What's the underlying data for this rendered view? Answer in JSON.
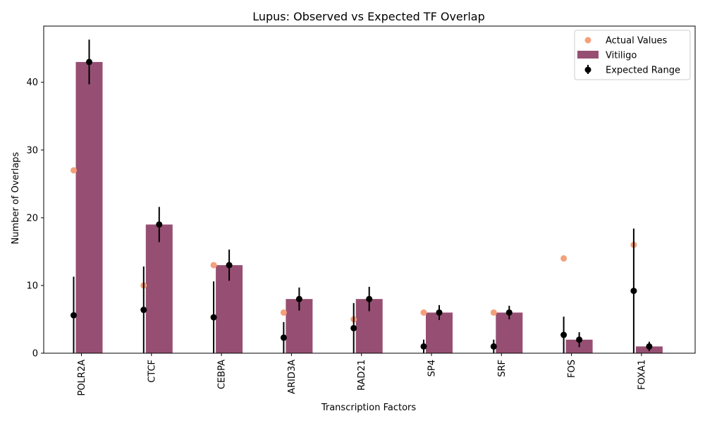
{
  "chart_data": {
    "type": "bar",
    "title": "Lupus: Observed vs Expected TF Overlap",
    "xlabel": "Transcription Factors",
    "ylabel": "Number of Overlaps",
    "ylim": [
      0,
      48.3
    ],
    "yticks": [
      0,
      10,
      20,
      30,
      40
    ],
    "categories": [
      "POLR2A",
      "CTCF",
      "CEBPA",
      "ARID3A",
      "RAD21",
      "SP4",
      "SRF",
      "FOS",
      "FOXA1"
    ],
    "legend_position": "top-right",
    "grid": false,
    "lupus": {
      "actual_values": [
        27,
        10,
        13,
        6,
        5,
        6,
        6,
        14,
        16
      ],
      "expected_mean": [
        5.6,
        6.4,
        5.3,
        2.3,
        3.7,
        1.0,
        1.0,
        2.7,
        9.2
      ],
      "expected_err": [
        5.7,
        6.4,
        5.3,
        2.3,
        3.7,
        1.0,
        1.0,
        2.7,
        9.2
      ]
    },
    "vitiligo": {
      "values": [
        43,
        19,
        13,
        8,
        8,
        6,
        6,
        2,
        1
      ],
      "expected_mean": [
        43,
        19,
        13,
        8,
        8,
        6,
        6,
        2,
        1
      ],
      "expected_err": [
        3.3,
        2.6,
        2.3,
        1.7,
        1.8,
        1.1,
        1.0,
        1.1,
        0.7
      ]
    },
    "legend": [
      {
        "label": "Actual Values",
        "kind": "marker",
        "color": "#f4a07a"
      },
      {
        "label": "Vitiligo",
        "kind": "bar",
        "color": "#964f72"
      },
      {
        "label": "Expected Range",
        "kind": "errorbar",
        "color": "#000000"
      }
    ],
    "colors": {
      "actual": "#f4a07a",
      "bar": "#964f72",
      "expected": "#000000"
    }
  }
}
